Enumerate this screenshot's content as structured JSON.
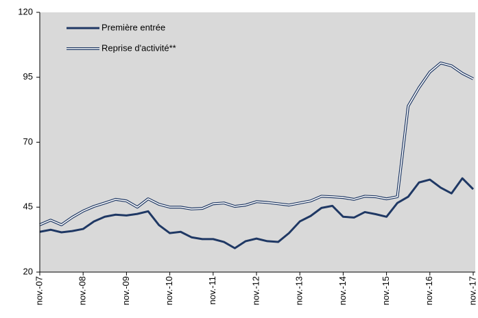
{
  "chart_data": {
    "type": "line",
    "categories": [
      "nov.-07",
      null,
      null,
      null,
      "nov.-08",
      null,
      null,
      null,
      "nov.-09",
      null,
      null,
      null,
      "nov.-10",
      null,
      null,
      null,
      "nov.-11",
      null,
      null,
      null,
      "nov.-12",
      null,
      null,
      null,
      "nov.-13",
      null,
      null,
      null,
      "nov.-14",
      null,
      null,
      null,
      "nov.-15",
      null,
      null,
      null,
      "nov.-16",
      null,
      null,
      null,
      "nov.-17"
    ],
    "series": [
      {
        "name": "Première entrée",
        "color": "#1f3864",
        "style": "solid",
        "values": [
          35.5,
          36.3,
          35.3,
          35.8,
          36.6,
          39.5,
          41.3,
          42.1,
          41.8,
          42.4,
          43.4,
          38.1,
          35.0,
          35.5,
          33.4,
          32.7,
          32.7,
          31.6,
          29.2,
          31.9,
          32.9,
          31.9,
          31.6,
          35.0,
          39.5,
          41.6,
          44.7,
          45.5,
          41.3,
          41.0,
          43.1,
          42.3,
          41.3,
          46.6,
          49.0,
          54.5,
          55.6,
          52.5,
          50.3,
          56.1,
          51.9
        ]
      },
      {
        "name": "Reprise d'activité**",
        "color": "#1f3864",
        "style": "double",
        "values": [
          38.2,
          40.0,
          38.2,
          41.1,
          43.5,
          45.3,
          46.6,
          48.0,
          47.4,
          45.0,
          48.2,
          46.1,
          45.0,
          45.0,
          44.3,
          44.5,
          46.3,
          46.6,
          45.3,
          45.8,
          47.1,
          46.8,
          46.3,
          45.8,
          46.6,
          47.4,
          49.2,
          49.0,
          48.7,
          48.0,
          49.2,
          49.0,
          48.2,
          49.0,
          83.9,
          91.0,
          97.0,
          100.5,
          99.4,
          96.5,
          94.4
        ]
      }
    ],
    "ylim": [
      20,
      120
    ],
    "yticks": [
      20,
      45,
      70,
      95,
      120
    ],
    "background": "#d9d9d9",
    "legend": "upper-left"
  }
}
